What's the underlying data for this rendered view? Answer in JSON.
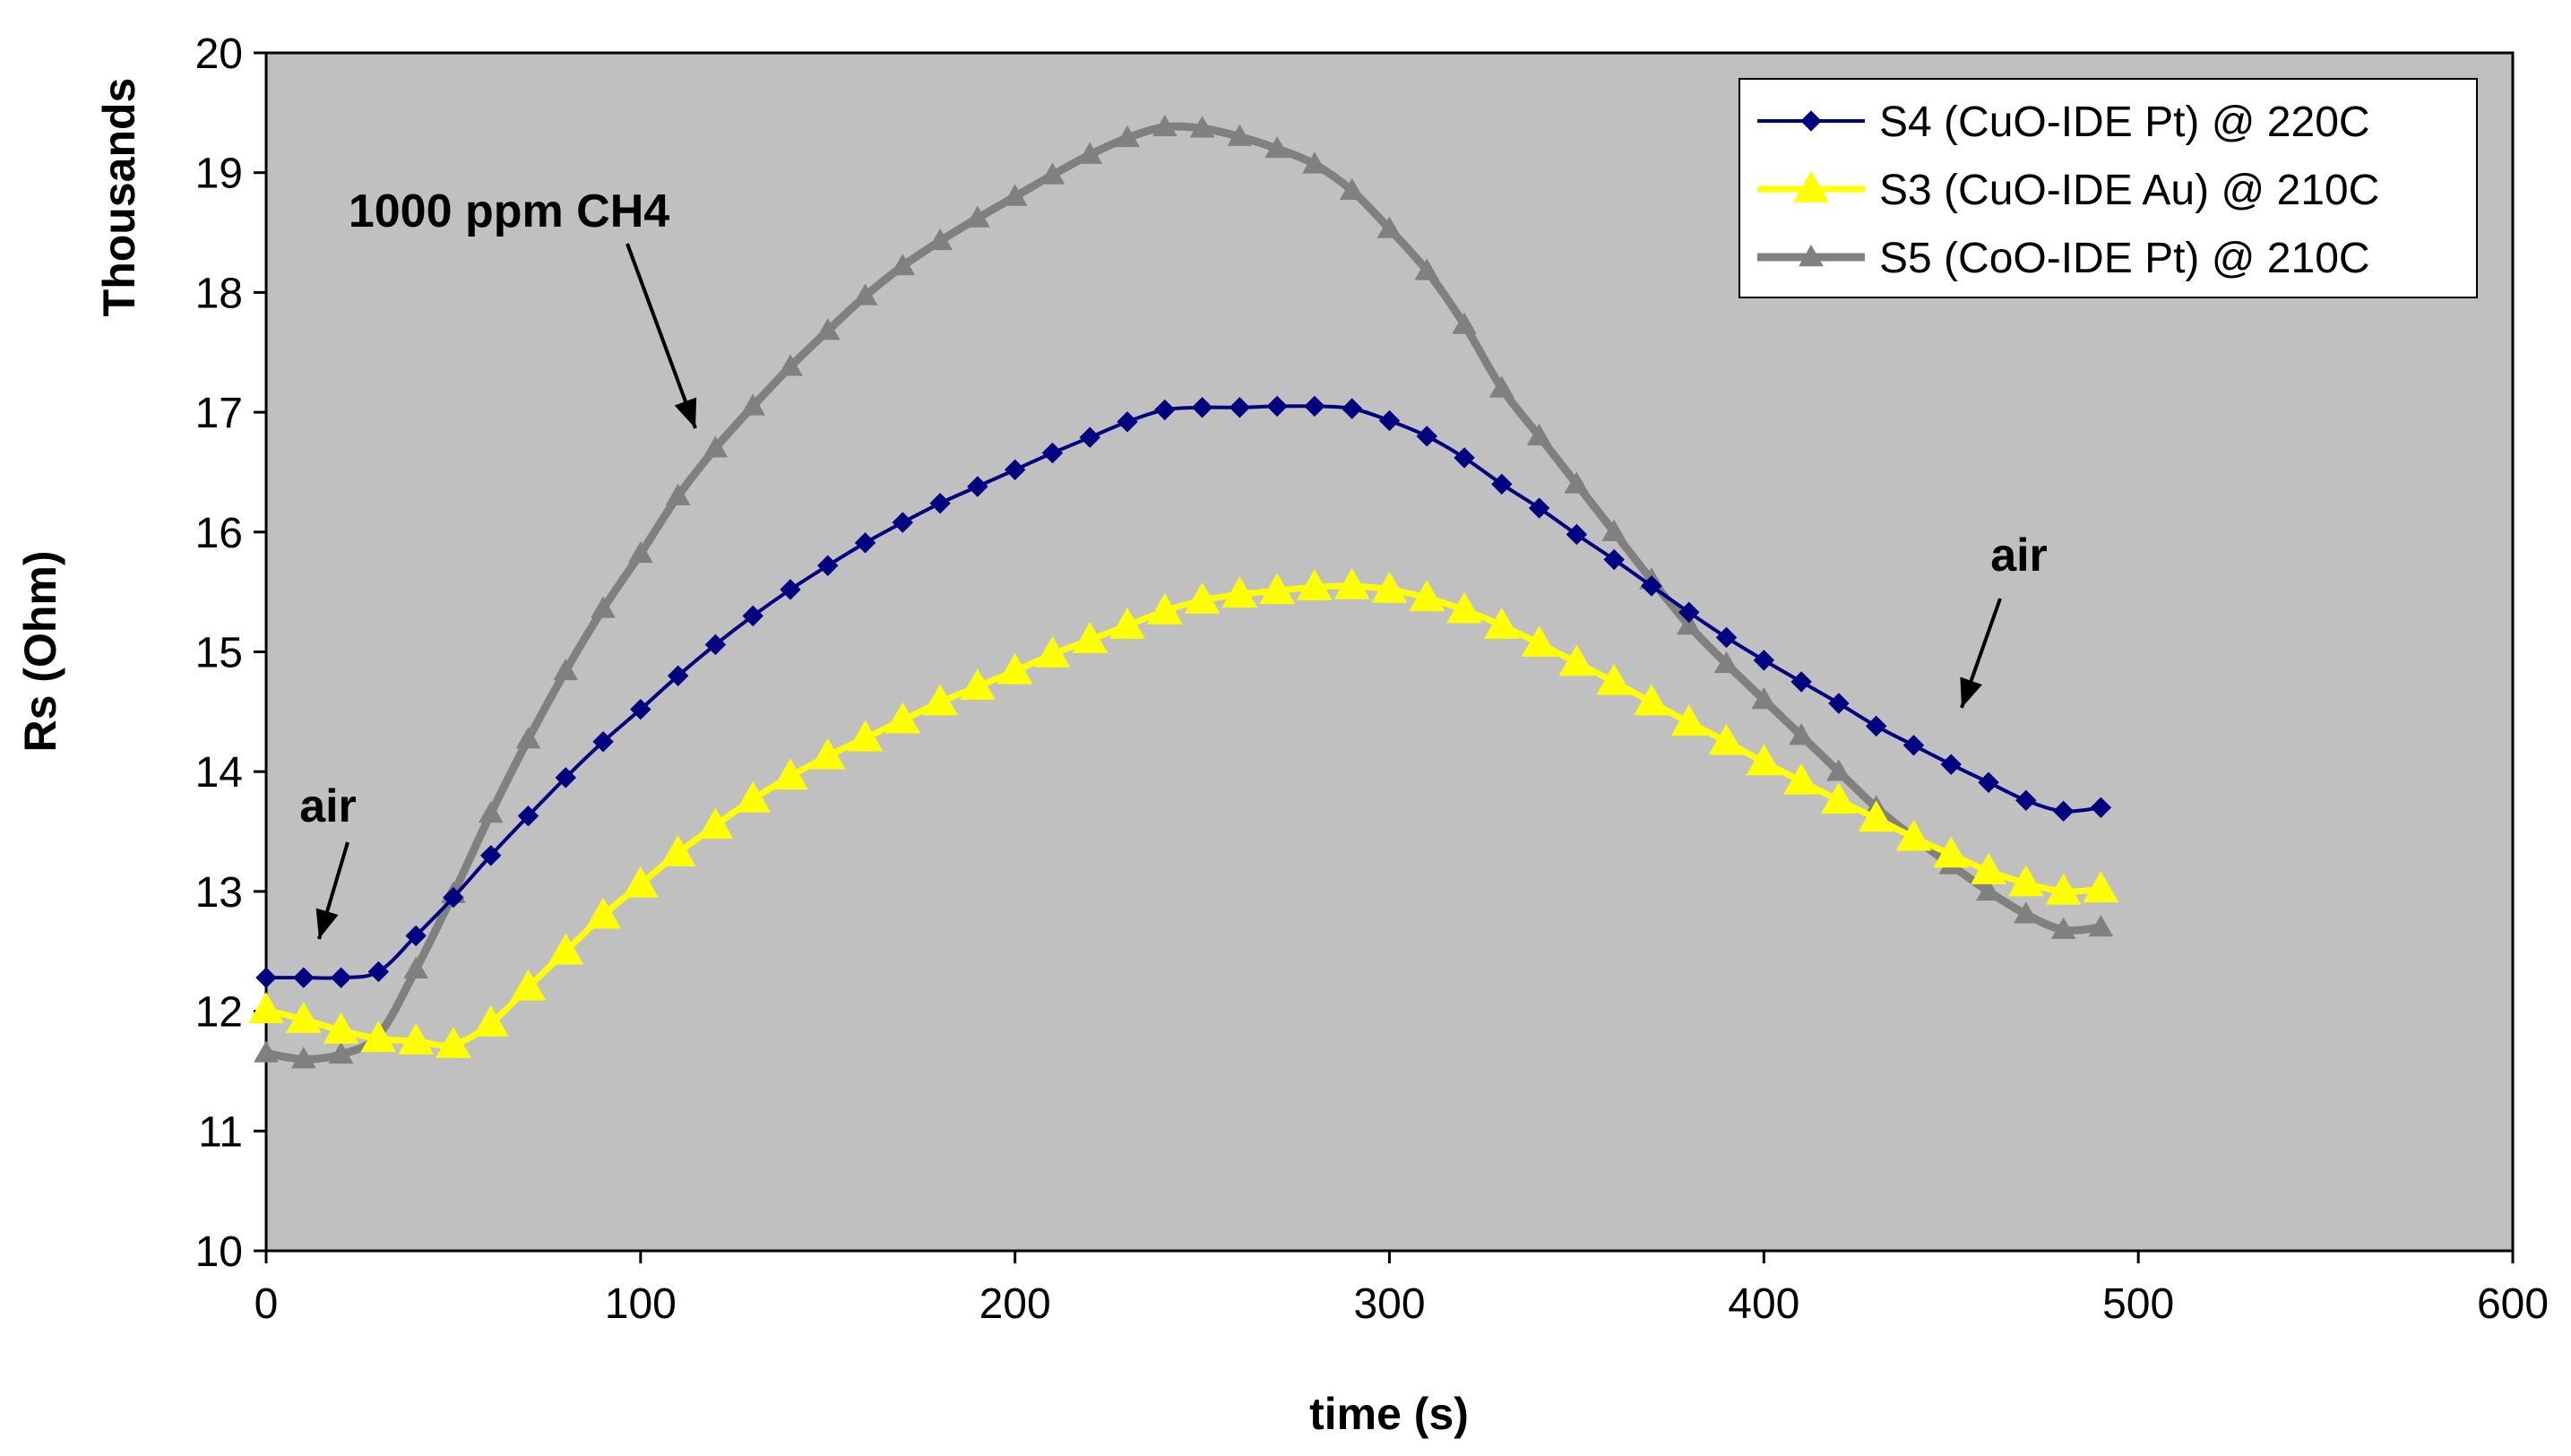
{
  "chart_data": {
    "type": "line",
    "xlabel": "time (s)",
    "ylabel": "Rs (Ohm)",
    "yunit_label": "Thousands",
    "xlim": [
      0,
      600
    ],
    "ylim": [
      10,
      20
    ],
    "xticks": [
      "0",
      "100",
      "200",
      "300",
      "400",
      "500",
      "600"
    ],
    "yticks": [
      "10",
      "11",
      "12",
      "13",
      "14",
      "15",
      "16",
      "17",
      "18",
      "19",
      "20"
    ],
    "plot_background": "#C0C0C0",
    "grid": false,
    "legend_position": "top-right",
    "x": [
      0,
      10,
      20,
      30,
      40,
      50,
      60,
      70,
      80,
      90,
      100,
      110,
      120,
      130,
      140,
      150,
      160,
      170,
      180,
      190,
      200,
      210,
      220,
      230,
      240,
      250,
      260,
      270,
      280,
      290,
      300,
      310,
      320,
      330,
      340,
      350,
      360,
      370,
      380,
      390,
      400,
      410,
      420,
      430,
      440,
      450,
      460,
      470,
      480,
      490
    ],
    "series": [
      {
        "name": "S4 (CuO-IDE Pt) @ 220C",
        "color": "#000080",
        "marker": "diamond",
        "values": [
          12.28,
          12.28,
          12.28,
          12.33,
          12.63,
          12.95,
          13.3,
          13.63,
          13.95,
          14.25,
          14.52,
          14.8,
          15.06,
          15.3,
          15.52,
          15.72,
          15.91,
          16.08,
          16.24,
          16.38,
          16.52,
          16.66,
          16.79,
          16.92,
          17.02,
          17.04,
          17.04,
          17.05,
          17.05,
          17.03,
          16.93,
          16.8,
          16.62,
          16.4,
          16.2,
          15.98,
          15.77,
          15.55,
          15.33,
          15.12,
          14.93,
          14.75,
          14.57,
          14.38,
          14.22,
          14.06,
          13.91,
          13.76,
          13.67,
          13.7
        ]
      },
      {
        "name": "S3 (CuO-IDE Au) @ 210C",
        "color": "#FFFF00",
        "marker": "triangle",
        "values": [
          12.01,
          11.93,
          11.84,
          11.77,
          11.75,
          11.72,
          11.9,
          12.2,
          12.5,
          12.8,
          13.06,
          13.32,
          13.55,
          13.77,
          13.96,
          14.13,
          14.28,
          14.43,
          14.58,
          14.71,
          14.84,
          14.98,
          15.1,
          15.22,
          15.34,
          15.43,
          15.48,
          15.51,
          15.54,
          15.55,
          15.52,
          15.45,
          15.35,
          15.22,
          15.07,
          14.91,
          14.75,
          14.58,
          14.41,
          14.25,
          14.08,
          13.92,
          13.76,
          13.61,
          13.45,
          13.31,
          13.17,
          13.07,
          13.0,
          13.02
        ]
      },
      {
        "name": "S5 (CoO-IDE Pt) @ 210C",
        "color": "#808080",
        "marker": "triangle",
        "values": [
          11.65,
          11.6,
          11.64,
          11.8,
          12.35,
          12.98,
          13.65,
          14.27,
          14.84,
          15.36,
          15.82,
          16.3,
          16.7,
          17.05,
          17.38,
          17.68,
          17.97,
          18.22,
          18.43,
          18.62,
          18.8,
          18.98,
          19.15,
          19.29,
          19.38,
          19.37,
          19.3,
          19.2,
          19.07,
          18.85,
          18.53,
          18.18,
          17.73,
          17.2,
          16.8,
          16.4,
          16.0,
          15.6,
          15.22,
          14.9,
          14.6,
          14.3,
          14.0,
          13.7,
          13.45,
          13.22,
          13.0,
          12.81,
          12.68,
          12.7
        ]
      }
    ],
    "annotations": [
      {
        "text": "1000 ppm CH4",
        "x": 110,
        "y": 17.8
      },
      {
        "text": "air",
        "x": 16,
        "y": 13.1
      },
      {
        "text": "air",
        "x": 456,
        "y": 14.9
      }
    ]
  }
}
